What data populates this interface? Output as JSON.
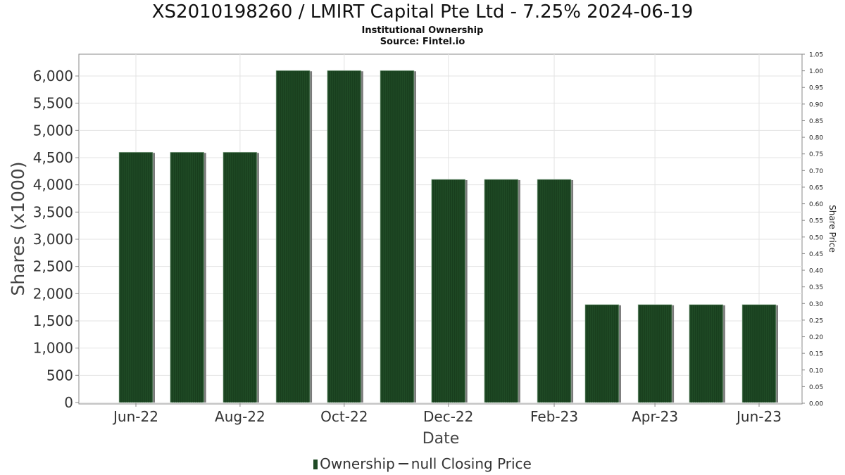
{
  "chart_data": {
    "type": "bar",
    "title": "XS2010198260 / LMIRT Capital Pte Ltd - 7.25% 2024-06-19",
    "subtitle": "Institutional Ownership",
    "source": "Source: Fintel.io",
    "xlabel": "Date",
    "ylabel": "Shares (x1000)",
    "y2label": "Share Price",
    "ylim": [
      0,
      6200
    ],
    "y2lim": [
      0,
      1.05
    ],
    "yticks": [
      "0",
      "500",
      "1,000",
      "1,500",
      "2,000",
      "2,500",
      "3,000",
      "3,500",
      "4,000",
      "4,500",
      "5,000",
      "5,500",
      "6,000"
    ],
    "y2ticks": [
      "0.00",
      "0.05",
      "0.10",
      "0.15",
      "0.20",
      "0.25",
      "0.30",
      "0.35",
      "0.40",
      "0.45",
      "0.50",
      "0.55",
      "0.60",
      "0.65",
      "0.70",
      "0.75",
      "0.80",
      "0.85",
      "0.90",
      "0.95",
      "1.00",
      "1.05"
    ],
    "xticks": [
      "Jun-22",
      "Aug-22",
      "Oct-22",
      "Dec-22",
      "Feb-23",
      "Apr-23",
      "Jun-23"
    ],
    "grid": true,
    "legend_position": "bottom",
    "series": [
      {
        "name": "Ownership",
        "color": "#1f4a25",
        "x": [
          "2022-06-01",
          "2022-07-01",
          "2022-08-01",
          "2022-09-01",
          "2022-10-01",
          "2022-11-01",
          "2022-12-01",
          "2023-01-01",
          "2023-02-01",
          "2023-03-01",
          "2023-04-01",
          "2023-05-01",
          "2023-06-01"
        ],
        "values": [
          4600,
          4600,
          4600,
          6100,
          6100,
          6100,
          4100,
          4100,
          4100,
          1800,
          1800,
          1800,
          1800
        ]
      }
    ],
    "legend": [
      "Ownership",
      "null Closing Price"
    ]
  }
}
